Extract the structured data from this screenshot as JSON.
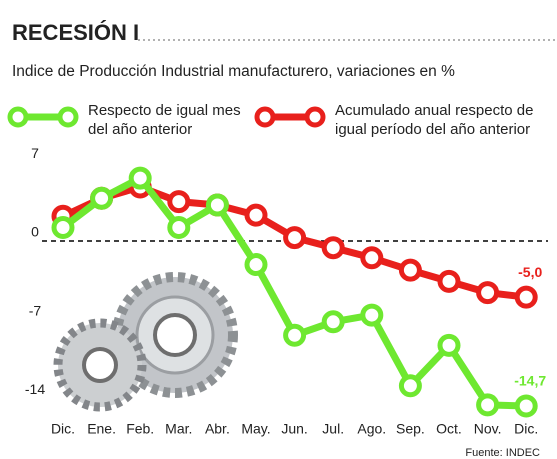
{
  "chart_data": {
    "type": "line",
    "title": "RECESIÓN I",
    "subtitle": "Indice de Producción Industrial manufacturero, variaciones en %",
    "categories": [
      "Dic.",
      "Ene.",
      "Feb.",
      "Mar.",
      "Abr.",
      "May.",
      "Jun.",
      "Jul.",
      "Ago.",
      "Sep.",
      "Oct.",
      "Nov.",
      "Dic."
    ],
    "series": [
      {
        "name": "Respecto de igual mes del año anterior",
        "color": "#6ee830",
        "values": [
          1.2,
          3.8,
          5.6,
          1.2,
          3.2,
          -2.1,
          -8.4,
          -7.2,
          -6.6,
          -12.9,
          -9.3,
          -14.6,
          -14.7
        ],
        "value_labels": [
          null,
          null,
          null,
          null,
          null,
          null,
          null,
          null,
          null,
          null,
          null,
          null,
          "-14,7"
        ]
      },
      {
        "name": "Acumulado anual respecto de igual período del año anterior",
        "color": "#e8201c",
        "values": [
          2.2,
          3.8,
          4.8,
          3.5,
          3.2,
          2.3,
          0.3,
          -0.6,
          -1.5,
          -2.6,
          -3.6,
          -4.6,
          -5.0
        ],
        "value_labels": [
          null,
          null,
          null,
          null,
          null,
          null,
          null,
          null,
          null,
          null,
          null,
          null,
          "-5,0"
        ]
      }
    ],
    "ylim": [
      -15.5,
      8.1
    ],
    "yticks": [
      7,
      0,
      -7,
      -14
    ],
    "source": "Fuente: INDEC"
  }
}
